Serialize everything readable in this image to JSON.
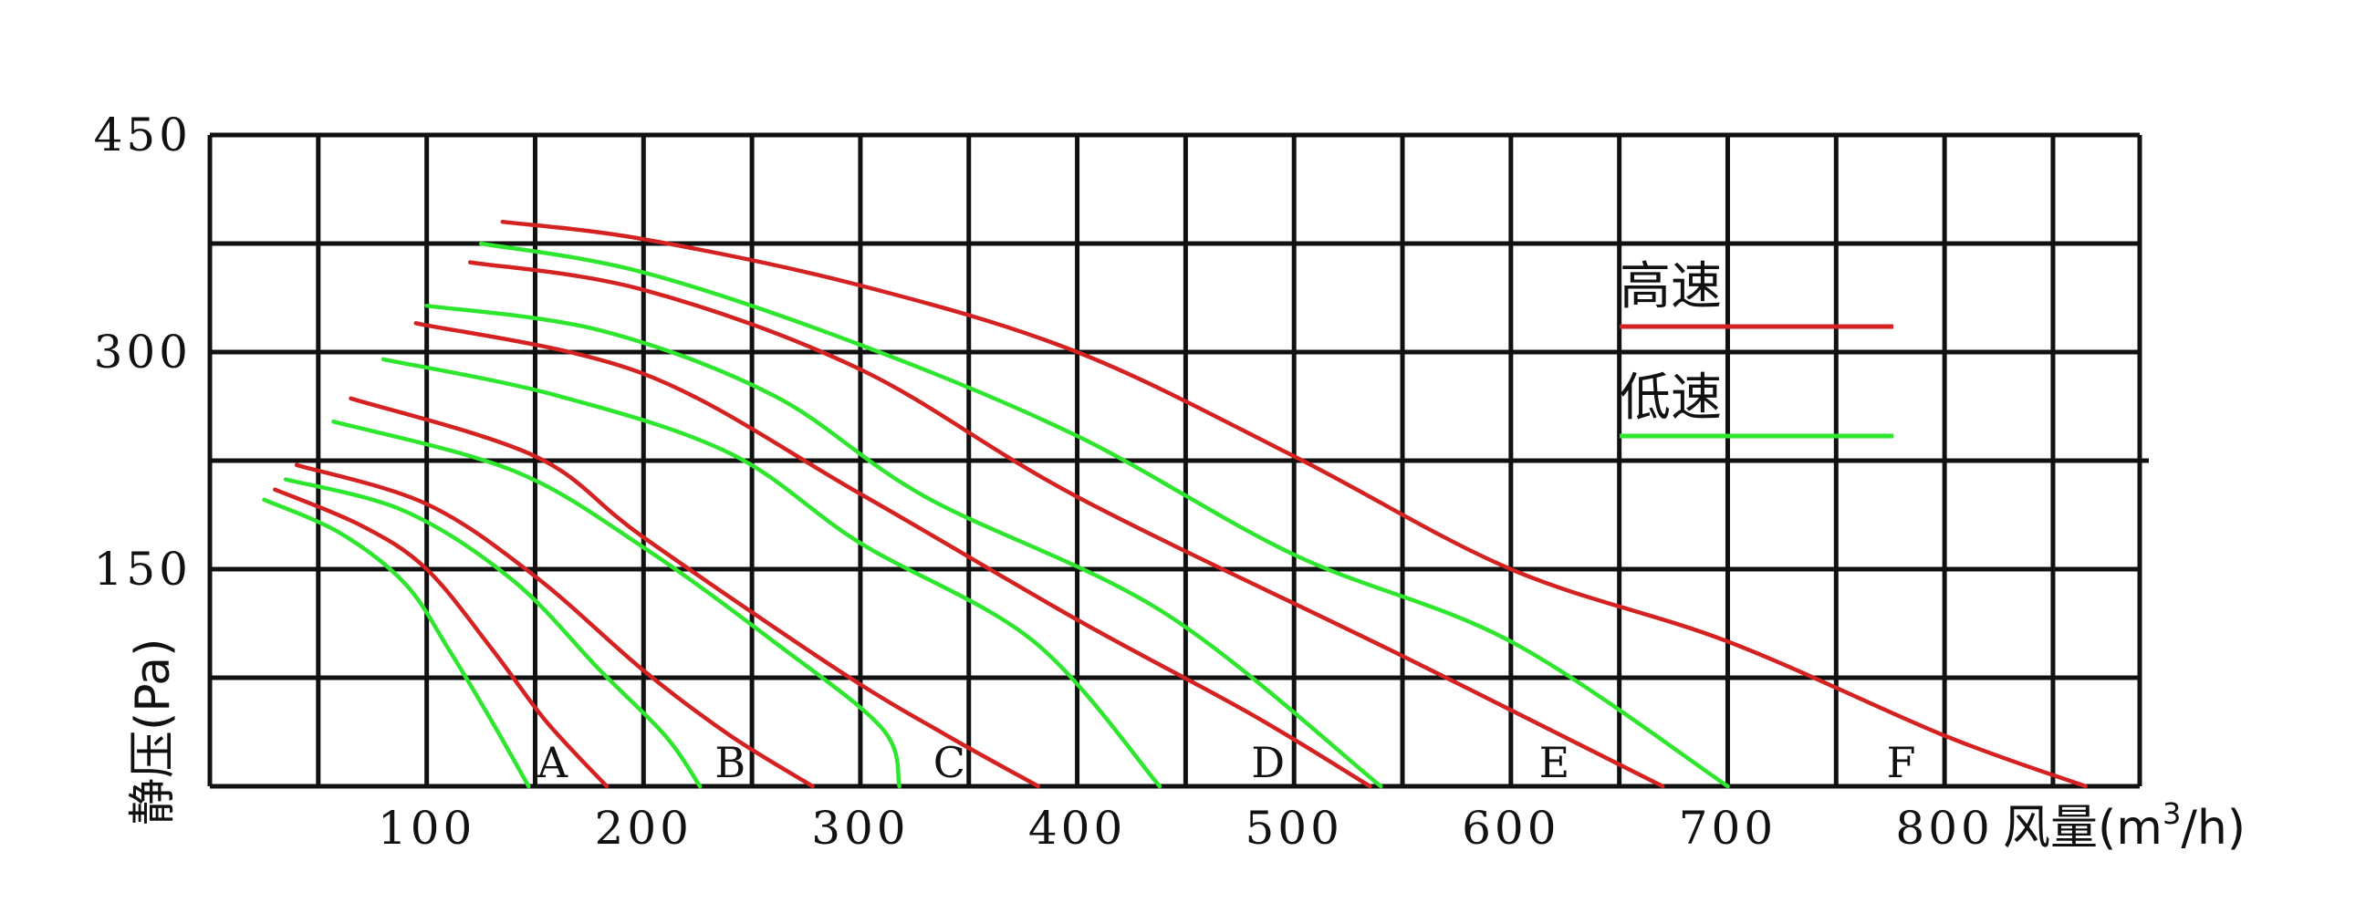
{
  "chart_data": {
    "type": "line",
    "title": "",
    "ylabel": "静压(Pa)",
    "xlabel_main": "风量(m",
    "xlabel_sup": "3",
    "xlabel_tail": "/h)",
    "xlim": [
      0,
      890
    ],
    "ylim": [
      0,
      450
    ],
    "x_ticks": [
      100,
      200,
      300,
      400,
      500,
      600,
      700,
      800
    ],
    "y_ticks": [
      150,
      300,
      450
    ],
    "grid": {
      "x_step": 50,
      "y_step": 75
    },
    "legend": {
      "placement": "top-right",
      "entries": [
        {
          "label": "高速",
          "color": "#d42121"
        },
        {
          "label": "低速",
          "color": "#2ee62e"
        }
      ]
    },
    "colors": {
      "high": "#d42121",
      "low": "#2ee62e",
      "grid": "#111111"
    },
    "curve_labels": [
      {
        "text": "A",
        "x": 158
      },
      {
        "text": "B",
        "x": 240
      },
      {
        "text": "C",
        "x": 341
      },
      {
        "text": "D",
        "x": 488
      },
      {
        "text": "E",
        "x": 620
      },
      {
        "text": "F",
        "x": 780
      }
    ],
    "series": [
      {
        "model": "A",
        "speed": "high",
        "points": [
          [
            30,
            205
          ],
          [
            70,
            180
          ],
          [
            100,
            150
          ],
          [
            130,
            95
          ],
          [
            155,
            45
          ],
          [
            183,
            0
          ]
        ]
      },
      {
        "model": "A",
        "speed": "low",
        "points": [
          [
            25,
            198
          ],
          [
            60,
            175
          ],
          [
            90,
            140
          ],
          [
            110,
            95
          ],
          [
            130,
            45
          ],
          [
            147,
            0
          ]
        ]
      },
      {
        "model": "B",
        "speed": "high",
        "points": [
          [
            40,
            222
          ],
          [
            100,
            195
          ],
          [
            150,
            145
          ],
          [
            200,
            80
          ],
          [
            240,
            35
          ],
          [
            278,
            0
          ]
        ]
      },
      {
        "model": "B",
        "speed": "low",
        "points": [
          [
            35,
            212
          ],
          [
            90,
            190
          ],
          [
            140,
            142
          ],
          [
            180,
            80
          ],
          [
            210,
            35
          ],
          [
            226,
            0
          ]
        ]
      },
      {
        "model": "C",
        "speed": "high",
        "points": [
          [
            65,
            268
          ],
          [
            150,
            228
          ],
          [
            200,
            172
          ],
          [
            290,
            80
          ],
          [
            340,
            35
          ],
          [
            382,
            0
          ]
        ]
      },
      {
        "model": "C",
        "speed": "low",
        "points": [
          [
            57,
            252
          ],
          [
            140,
            218
          ],
          [
            200,
            165
          ],
          [
            260,
            100
          ],
          [
            310,
            40
          ],
          [
            318,
            0
          ]
        ]
      },
      {
        "model": "D",
        "speed": "high",
        "points": [
          [
            95,
            320
          ],
          [
            200,
            285
          ],
          [
            300,
            202
          ],
          [
            400,
            115
          ],
          [
            480,
            50
          ],
          [
            535,
            0
          ]
        ]
      },
      {
        "model": "D",
        "speed": "low",
        "points": [
          [
            80,
            295
          ],
          [
            160,
            270
          ],
          [
            240,
            230
          ],
          [
            300,
            168
          ],
          [
            380,
            100
          ],
          [
            438,
            0
          ]
        ]
      },
      {
        "model": "E",
        "speed": "high",
        "points": [
          [
            120,
            362
          ],
          [
            200,
            343
          ],
          [
            300,
            288
          ],
          [
            400,
            200
          ],
          [
            550,
            90
          ],
          [
            670,
            0
          ]
        ]
      },
      {
        "model": "E",
        "speed": "low",
        "points": [
          [
            100,
            332
          ],
          [
            180,
            315
          ],
          [
            260,
            270
          ],
          [
            330,
            200
          ],
          [
            440,
            120
          ],
          [
            540,
            0
          ]
        ]
      },
      {
        "model": "F",
        "speed": "high",
        "points": [
          [
            135,
            390
          ],
          [
            200,
            378
          ],
          [
            300,
            346
          ],
          [
            400,
            300
          ],
          [
            500,
            228
          ],
          [
            600,
            150
          ],
          [
            700,
            100
          ],
          [
            800,
            35
          ],
          [
            865,
            0
          ]
        ]
      },
      {
        "model": "F",
        "speed": "low",
        "points": [
          [
            125,
            375
          ],
          [
            200,
            355
          ],
          [
            300,
            305
          ],
          [
            400,
            242
          ],
          [
            500,
            160
          ],
          [
            600,
            100
          ],
          [
            700,
            0
          ]
        ]
      }
    ]
  }
}
